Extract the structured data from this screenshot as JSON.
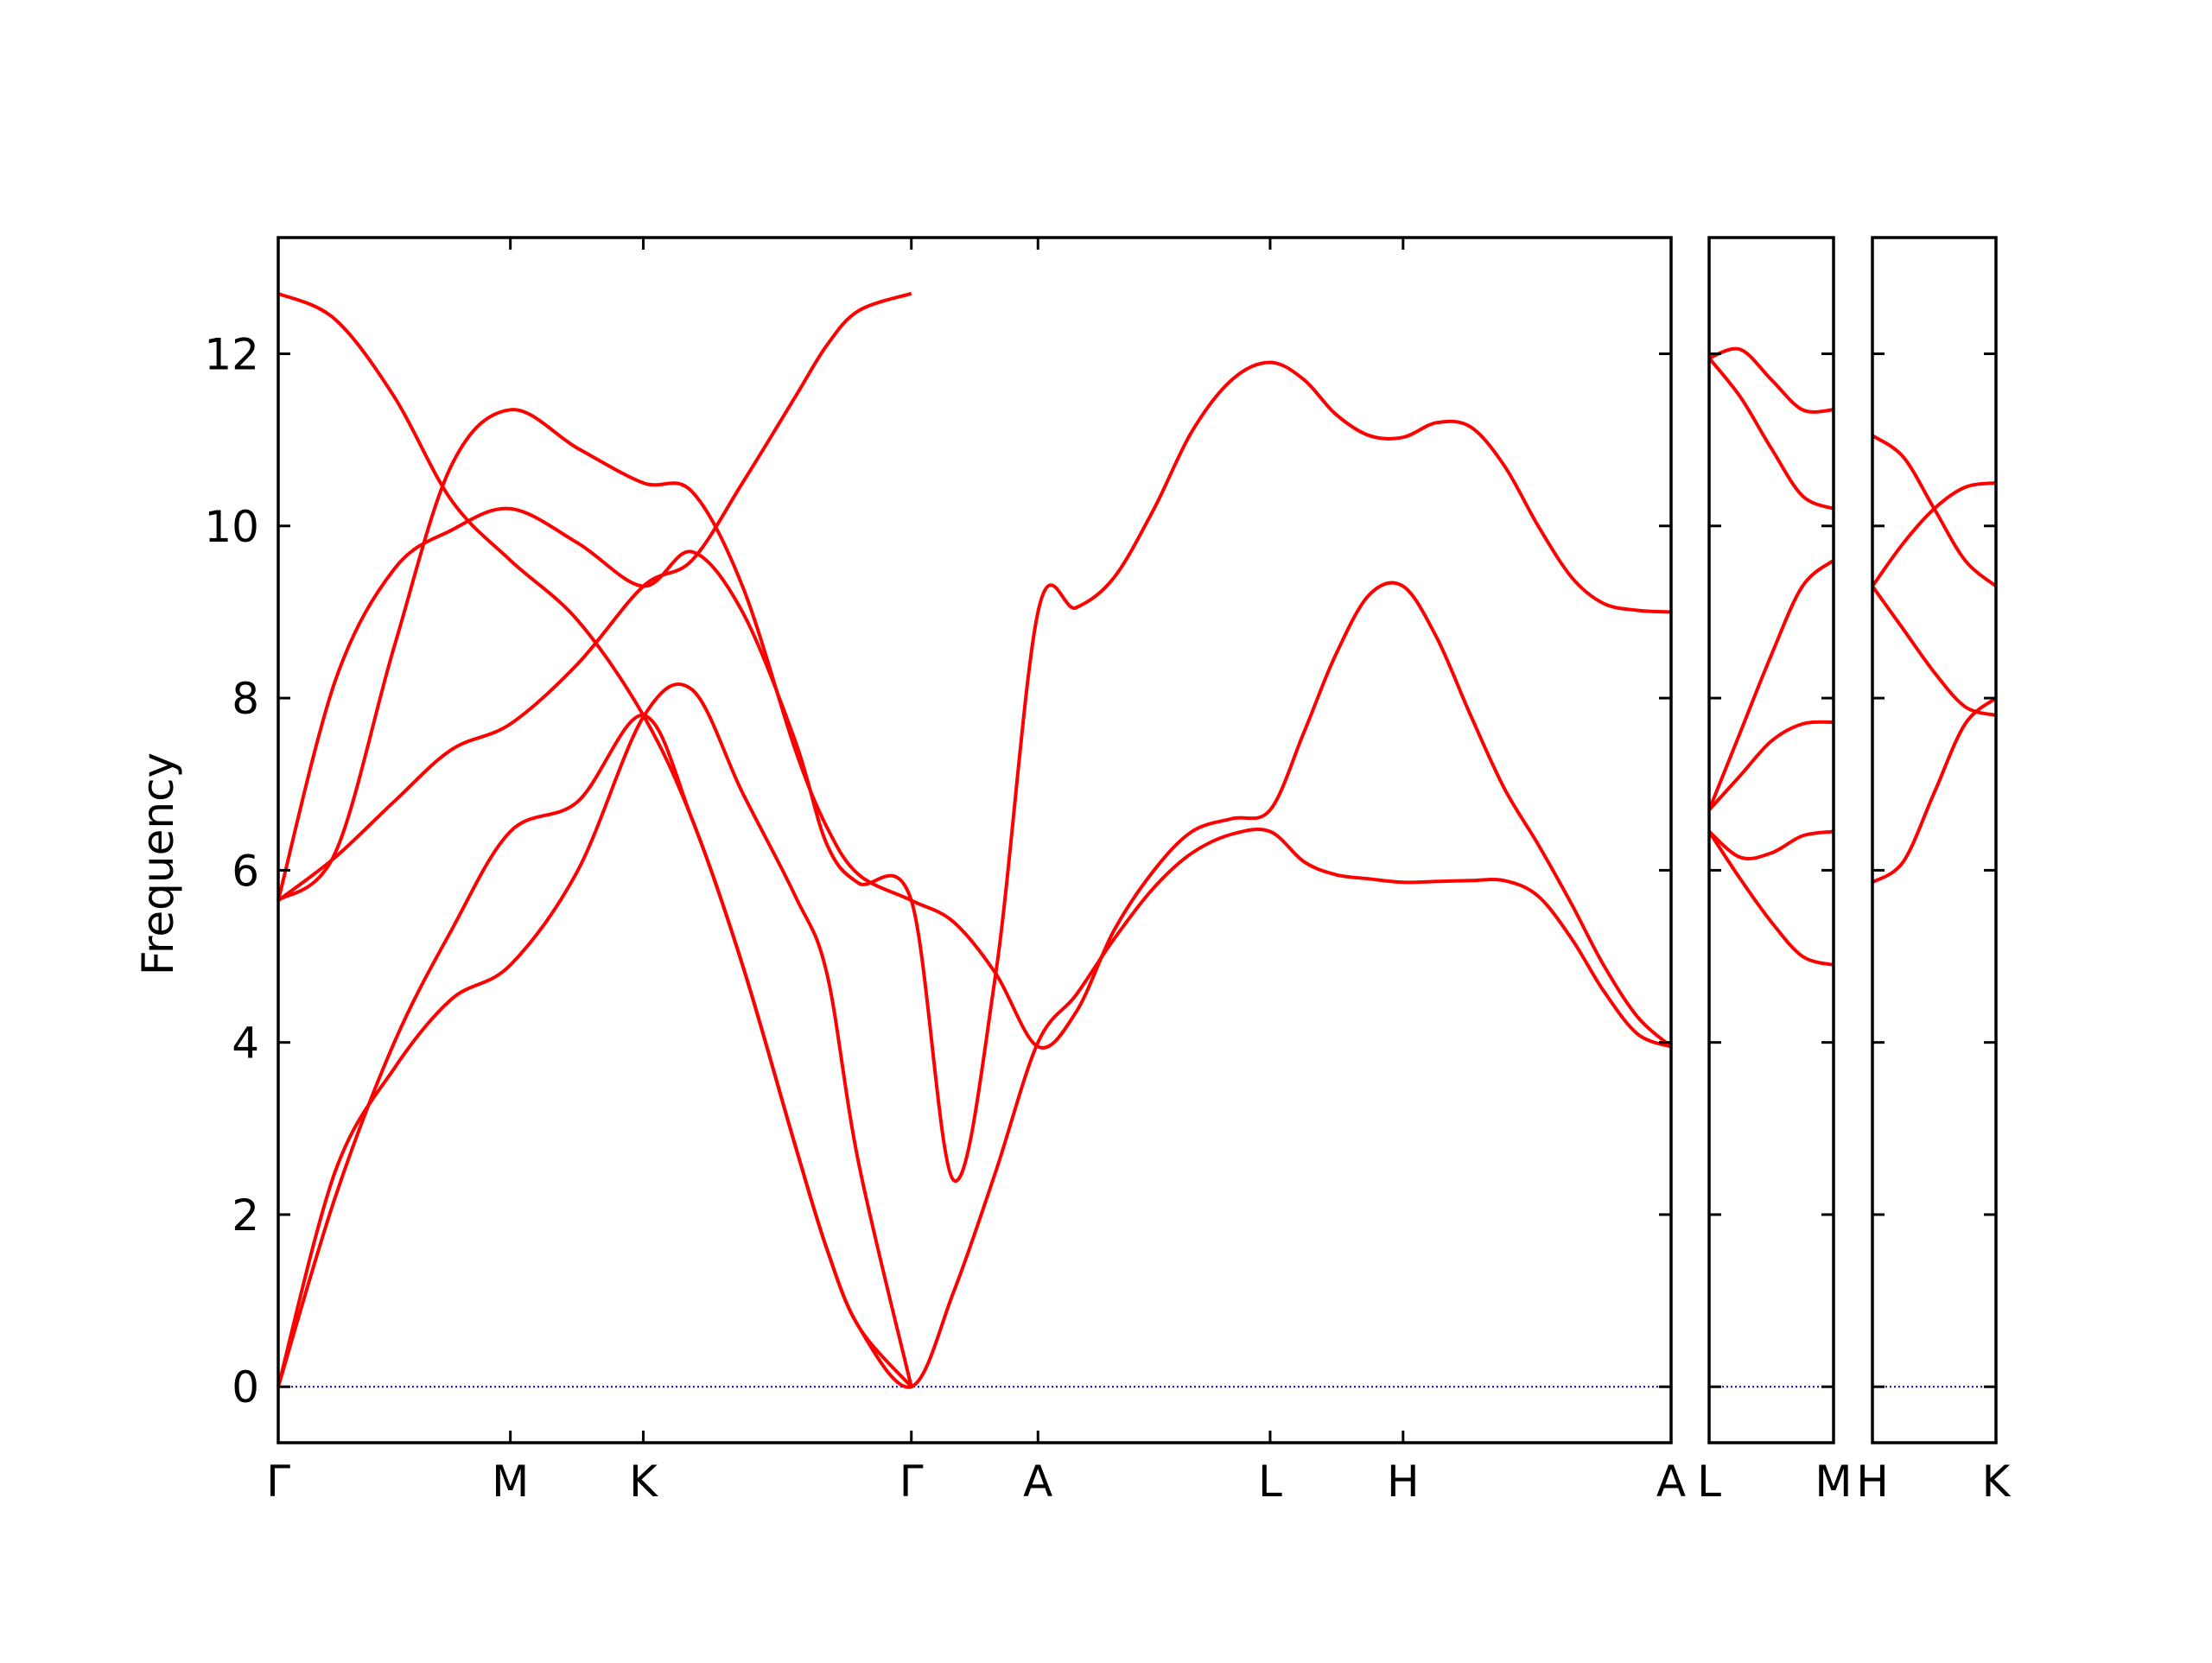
{
  "chart_data": {
    "type": "line",
    "title": "",
    "ylabel": "Frequency",
    "ylim": [
      -0.65,
      13.35
    ],
    "yticks": [
      0,
      2,
      4,
      6,
      8,
      10,
      12
    ],
    "line_color": "#ff0000",
    "zero_line_color": "#0000cc",
    "grid": false,
    "legend": "none",
    "panels": [
      {
        "xlim": [
          0,
          6.6
        ],
        "ticks": [
          {
            "x": 0,
            "label": "Γ"
          },
          {
            "x": 1.1,
            "label": "M"
          },
          {
            "x": 1.73,
            "label": "K"
          },
          {
            "x": 3.0,
            "label": "Γ"
          },
          {
            "x": 3.6,
            "label": "A"
          },
          {
            "x": 4.7,
            "label": "L"
          },
          {
            "x": 5.33,
            "label": "H"
          },
          {
            "x": 6.6,
            "label": "A"
          }
        ],
        "series": [
          {
            "x": [
              0,
              0.27,
              0.55,
              0.82,
              1.1,
              1.42,
              1.73,
              1.96,
              2.2,
              2.45,
              2.6,
              2.75,
              3.0,
              3.2,
              3.4,
              3.6,
              3.78,
              3.96,
              4.15,
              4.33,
              4.52,
              4.7,
              4.86,
              5.01,
              5.17,
              5.33,
              5.49,
              5.65,
              5.81,
              5.97,
              6.13,
              6.28,
              6.44,
              6.6
            ],
            "y": [
              12.7,
              12.4,
              11.5,
              10.3,
              9.6,
              8.9,
              7.8,
              6.6,
              4.9,
              2.8,
              1.6,
              0.7,
              0,
              1.1,
              2.5,
              4.0,
              4.55,
              5.2,
              5.8,
              6.2,
              6.42,
              6.45,
              6.1,
              5.95,
              5.9,
              5.86,
              5.87,
              5.88,
              5.88,
              5.7,
              5.2,
              4.6,
              4.1,
              3.95
            ]
          },
          {
            "x": [
              0,
              0.27,
              0.55,
              0.82,
              1.1,
              1.42,
              1.73,
              1.96,
              2.2,
              2.45,
              2.6,
              2.75,
              3.0,
              3.2,
              3.4,
              3.6,
              3.78,
              3.96,
              4.15,
              4.33,
              4.52,
              4.7,
              4.86,
              5.01,
              5.17,
              5.33,
              5.49,
              5.65,
              5.81,
              5.97,
              6.13,
              6.28,
              6.44,
              6.6
            ],
            "y": [
              5.65,
              6.2,
              8.6,
              10.7,
              11.35,
              10.9,
              10.5,
              10.4,
              9.3,
              7.4,
              6.5,
              5.95,
              5.65,
              5.4,
              4.8,
              3.95,
              4.35,
              5.3,
              6.0,
              6.45,
              6.6,
              6.7,
              7.6,
              8.5,
              9.2,
              9.3,
              8.7,
              7.8,
              6.95,
              6.3,
              5.6,
              4.9,
              4.3,
              3.95
            ]
          },
          {
            "x": [
              0,
              0.27,
              0.55,
              0.82,
              1.1,
              1.42,
              1.73,
              1.96,
              2.2,
              2.45,
              2.6,
              2.75,
              3.0,
              3.2,
              3.4,
              3.6,
              3.78,
              3.96,
              4.15,
              4.33,
              4.52,
              4.7,
              4.86,
              5.01,
              5.17,
              5.33,
              5.49,
              5.65,
              5.81,
              5.97,
              6.13,
              6.28,
              6.44,
              6.6
            ],
            "y": [
              5.65,
              8.2,
              9.5,
              9.95,
              10.2,
              9.8,
              9.3,
              9.7,
              9.0,
              7.5,
              6.3,
              5.85,
              5.65,
              2.4,
              4.8,
              9.0,
              9.05,
              9.4,
              10.2,
              11.1,
              11.7,
              11.9,
              11.7,
              11.3,
              11.05,
              11.03,
              11.2,
              11.15,
              10.7,
              10.0,
              9.4,
              9.1,
              9.02,
              9.0
            ]
          },
          {
            "x": [
              0,
              0.27,
              0.55,
              0.82,
              1.1,
              1.42,
              1.73,
              1.96,
              2.2,
              2.45,
              2.6,
              2.75,
              3.0
            ],
            "y": [
              5.65,
              6.15,
              6.8,
              7.4,
              7.7,
              8.4,
              9.3,
              9.6,
              10.5,
              11.5,
              12.1,
              12.5,
              12.7
            ]
          },
          {
            "x": [
              0,
              0.27,
              0.55,
              0.82,
              1.1,
              1.42,
              1.73,
              1.96,
              2.2,
              2.45,
              2.6,
              2.75,
              3.0
            ],
            "y": [
              0,
              2.2,
              4.0,
              5.3,
              6.45,
              6.8,
              7.8,
              6.6,
              4.9,
              2.8,
              1.6,
              0.7,
              0
            ]
          },
          {
            "x": [
              0,
              0.27,
              0.55,
              0.82,
              1.1,
              1.42,
              1.73,
              1.96,
              2.2,
              2.45,
              2.6,
              2.75,
              3.0
            ],
            "y": [
              0,
              2.5,
              3.7,
              4.5,
              4.9,
              6.0,
              7.78,
              8.1,
              6.9,
              5.7,
              4.8,
              2.6,
              0
            ]
          }
        ]
      },
      {
        "xlim": [
          0,
          1.0
        ],
        "ticks": [
          {
            "x": 0,
            "label": "L"
          },
          {
            "x": 1.0,
            "label": "M"
          }
        ],
        "series": [
          {
            "x": [
              0,
              0.25,
              0.5,
              0.75,
              1.0
            ],
            "y": [
              11.95,
              12.05,
              11.7,
              11.35,
              11.35
            ]
          },
          {
            "x": [
              0,
              0.25,
              0.5,
              0.75,
              1.0
            ],
            "y": [
              11.95,
              11.5,
              10.9,
              10.35,
              10.2
            ]
          },
          {
            "x": [
              0,
              0.25,
              0.5,
              0.75,
              1.0
            ],
            "y": [
              6.7,
              7.6,
              8.5,
              9.3,
              9.6
            ]
          },
          {
            "x": [
              0,
              0.25,
              0.5,
              0.75,
              1.0
            ],
            "y": [
              6.7,
              7.1,
              7.5,
              7.7,
              7.72
            ]
          },
          {
            "x": [
              0,
              0.25,
              0.5,
              0.75,
              1.0
            ],
            "y": [
              6.45,
              6.15,
              6.2,
              6.4,
              6.45
            ]
          },
          {
            "x": [
              0,
              0.25,
              0.5,
              0.75,
              1.0
            ],
            "y": [
              6.45,
              5.9,
              5.4,
              5.0,
              4.9
            ]
          }
        ]
      },
      {
        "xlim": [
          0,
          1.0
        ],
        "ticks": [
          {
            "x": 0,
            "label": "H"
          },
          {
            "x": 1.0,
            "label": "K"
          }
        ],
        "series": [
          {
            "x": [
              0,
              0.25,
              0.5,
              0.75,
              1.0
            ],
            "y": [
              11.05,
              10.8,
              10.2,
              9.6,
              9.3
            ]
          },
          {
            "x": [
              0,
              0.25,
              0.5,
              0.75,
              1.0
            ],
            "y": [
              9.3,
              9.8,
              10.2,
              10.45,
              10.5
            ]
          },
          {
            "x": [
              0,
              0.25,
              0.5,
              0.75,
              1.0
            ],
            "y": [
              9.3,
              8.8,
              8.3,
              7.9,
              7.8
            ]
          },
          {
            "x": [
              0,
              0.25,
              0.5,
              0.75,
              1.0
            ],
            "y": [
              5.86,
              6.1,
              6.9,
              7.7,
              8.0
            ]
          }
        ]
      }
    ]
  }
}
